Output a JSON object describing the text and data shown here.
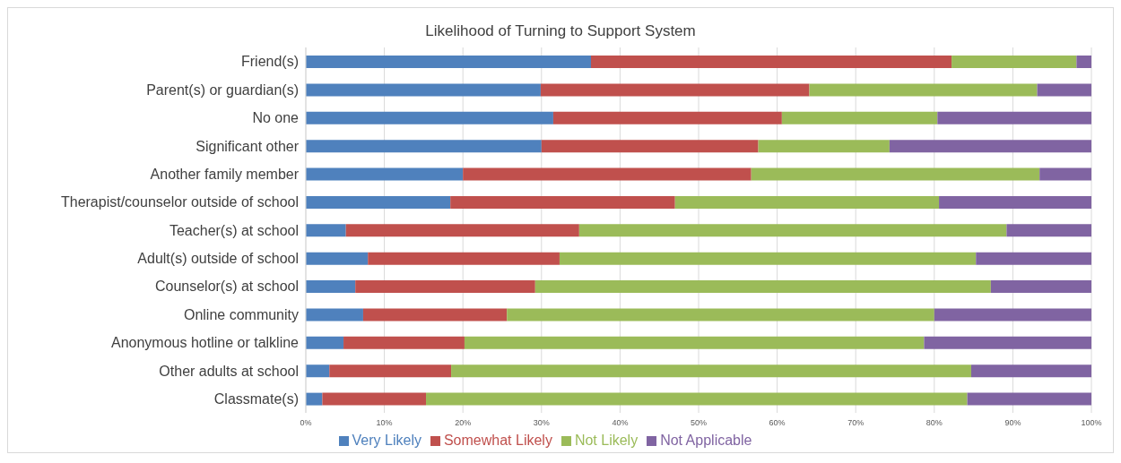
{
  "chart_data": {
    "type": "bar",
    "title": "Likelihood of Turning to Support System",
    "orientation": "horizontal",
    "stacked": true,
    "categories": [
      "Friend(s)",
      "Parent(s) or guardian(s)",
      "No one",
      "Significant other",
      "Another family member",
      "Therapist/counselor outside of school",
      "Teacher(s) at school",
      "Adult(s) outside of school",
      "Counselor(s) at school",
      "Online community",
      "Anonymous hotline or talkline",
      "Other adults at school",
      "Classmate(s)"
    ],
    "series": [
      {
        "name": "Very Likely",
        "color": "#4f81bd",
        "values": [
          36.3,
          29.9,
          31.5,
          30.0,
          20.0,
          18.4,
          5.1,
          7.9,
          6.3,
          7.3,
          4.8,
          3.0,
          2.1
        ]
      },
      {
        "name": "Somewhat Likely",
        "color": "#c0504d",
        "values": [
          45.9,
          34.2,
          29.1,
          27.6,
          36.7,
          28.6,
          29.7,
          24.4,
          22.9,
          18.3,
          15.4,
          15.5,
          13.2
        ]
      },
      {
        "name": "Not Likely",
        "color": "#9bbb59",
        "values": [
          15.9,
          29.0,
          19.8,
          16.7,
          36.7,
          33.6,
          54.4,
          53.0,
          58.0,
          54.4,
          58.5,
          66.2,
          68.9
        ]
      },
      {
        "name": "Not Applicable",
        "color": "#8064a2",
        "values": [
          1.9,
          6.9,
          19.6,
          25.7,
          6.6,
          19.4,
          10.8,
          14.7,
          12.8,
          20.0,
          21.3,
          15.3,
          15.8
        ]
      }
    ],
    "xlim": [
      0,
      100
    ],
    "xticks": [
      {
        "value": 0,
        "label": "0%"
      },
      {
        "value": 10,
        "label": "10%"
      },
      {
        "value": 20,
        "label": "20%"
      },
      {
        "value": 30,
        "label": "30%"
      },
      {
        "value": 40,
        "label": "40%"
      },
      {
        "value": 50,
        "label": "50%"
      },
      {
        "value": 60,
        "label": "60%"
      },
      {
        "value": 70,
        "label": "70%"
      },
      {
        "value": 80,
        "label": "80%"
      },
      {
        "value": 90,
        "label": "90%"
      },
      {
        "value": 100,
        "label": "100%"
      }
    ],
    "grid": "x",
    "legend": "bottom"
  }
}
